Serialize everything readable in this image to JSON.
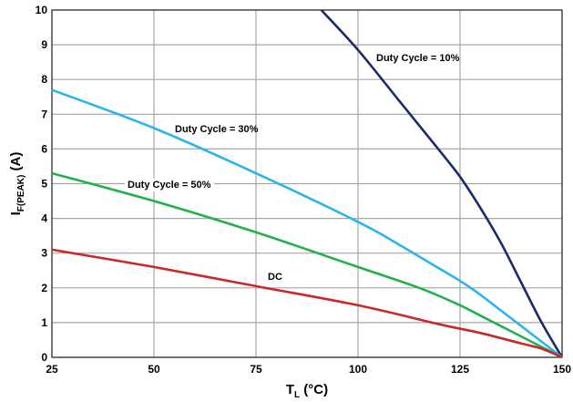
{
  "chart_data": {
    "type": "line",
    "xlabel": {
      "main": "T",
      "sub": "L",
      "unit": " (°C)"
    },
    "ylabel": {
      "main": "I",
      "sub": "F(PEAK)",
      "unit": " (A)"
    },
    "xlim": [
      25,
      150
    ],
    "ylim": [
      0,
      10
    ],
    "xticks": [
      25,
      50,
      75,
      100,
      125,
      150
    ],
    "yticks": [
      0,
      1,
      2,
      3,
      4,
      5,
      6,
      7,
      8,
      9,
      10
    ],
    "grid": true,
    "legend": "none",
    "series": [
      {
        "name": "Duty Cycle = 10%",
        "color": "#1b2a6b",
        "x": [
          91,
          100,
          110,
          120,
          125,
          130,
          135,
          140,
          145,
          150
        ],
        "y": [
          10,
          8.85,
          7.4,
          5.95,
          5.2,
          4.3,
          3.3,
          2.15,
          1.0,
          0
        ]
      },
      {
        "name": "Duty Cycle = 30%",
        "color": "#2bb5ea",
        "x": [
          25,
          50,
          75,
          100,
          110,
          120,
          125,
          130,
          135,
          140,
          145,
          150
        ],
        "y": [
          7.7,
          6.6,
          5.3,
          3.9,
          3.25,
          2.55,
          2.2,
          1.8,
          1.35,
          0.9,
          0.45,
          0
        ]
      },
      {
        "name": "Duty Cycle = 50%",
        "color": "#22b04c",
        "x": [
          25,
          50,
          75,
          100,
          115,
          125,
          130,
          135,
          140,
          145,
          150
        ],
        "y": [
          5.3,
          4.5,
          3.6,
          2.6,
          2.0,
          1.5,
          1.2,
          0.9,
          0.6,
          0.3,
          0
        ]
      },
      {
        "name": "DC",
        "color": "#c62a2a",
        "x": [
          25,
          50,
          75,
          100,
          120,
          130,
          140,
          145,
          150
        ],
        "y": [
          3.1,
          2.6,
          2.05,
          1.5,
          0.95,
          0.7,
          0.4,
          0.25,
          0
        ]
      }
    ]
  }
}
